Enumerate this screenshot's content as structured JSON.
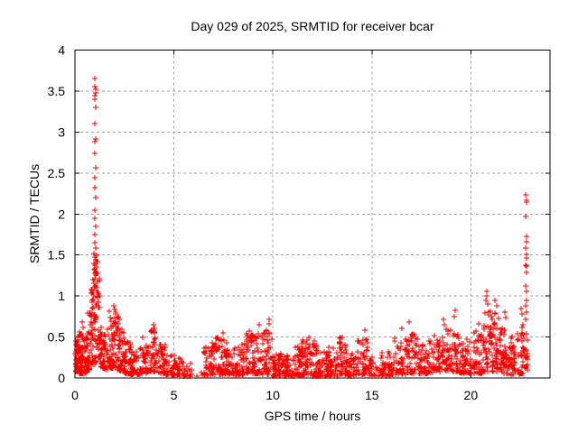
{
  "chart_data": {
    "type": "scatter",
    "title": "Day 029 of 2025, SRMTID for receiver bcar",
    "day": "029",
    "year": "2025",
    "receiver": "bcar",
    "xlabel": "GPS time / hours",
    "ylabel": "SRMTID / TECUs",
    "xlim": [
      0,
      24
    ],
    "ylim": [
      0,
      4
    ],
    "x_ticks": [
      0,
      5,
      10,
      15,
      20
    ],
    "x_tick_labels": [
      "0",
      "5",
      "10",
      "15",
      "20"
    ],
    "y_ticks": [
      0,
      0.5,
      1,
      1.5,
      2,
      2.5,
      3,
      3.5,
      4
    ],
    "y_tick_labels": [
      "0",
      "0.5",
      "1",
      "1.5",
      "2",
      "2.5",
      "3",
      "3.5",
      "4"
    ],
    "grid": true,
    "legend": "none",
    "marker": "plus",
    "marker_color": "#ff0000",
    "grid_color": "#a0a0a0",
    "frame_color": "#000000",
    "envelope_bins": [
      [
        0.0,
        0.1,
        0.08,
        0.5,
        22
      ],
      [
        0.1,
        0.35,
        0.05,
        0.58,
        55
      ],
      [
        0.35,
        0.6,
        0.05,
        0.52,
        50
      ],
      [
        0.6,
        0.8,
        0.1,
        0.8,
        28
      ],
      [
        0.8,
        0.95,
        0.15,
        1.1,
        26
      ],
      [
        0.95,
        1.1,
        0.2,
        1.45,
        26
      ],
      [
        1.1,
        1.25,
        0.25,
        1.3,
        22
      ],
      [
        1.25,
        1.45,
        0.12,
        0.72,
        24
      ],
      [
        1.45,
        1.7,
        0.1,
        0.6,
        30
      ],
      [
        1.7,
        2.0,
        0.12,
        0.85,
        40
      ],
      [
        2.0,
        2.25,
        0.1,
        0.8,
        38
      ],
      [
        2.25,
        2.5,
        0.08,
        0.6,
        34
      ],
      [
        2.5,
        2.8,
        0.05,
        0.45,
        34
      ],
      [
        2.8,
        3.3,
        0.04,
        0.38,
        44
      ],
      [
        3.3,
        3.7,
        0.06,
        0.5,
        40
      ],
      [
        3.7,
        4.15,
        0.08,
        0.62,
        44
      ],
      [
        4.15,
        4.6,
        0.05,
        0.42,
        38
      ],
      [
        4.6,
        5.1,
        0.03,
        0.3,
        32
      ],
      [
        5.1,
        5.55,
        0.02,
        0.25,
        24
      ],
      [
        5.55,
        5.9,
        0.02,
        0.2,
        14
      ],
      [
        5.9,
        6.5,
        0.02,
        0.08,
        3
      ],
      [
        6.5,
        6.9,
        0.03,
        0.42,
        38
      ],
      [
        6.9,
        7.4,
        0.04,
        0.5,
        48
      ],
      [
        7.4,
        7.9,
        0.04,
        0.48,
        48
      ],
      [
        7.9,
        8.5,
        0.03,
        0.42,
        50
      ],
      [
        8.5,
        9.0,
        0.05,
        0.55,
        48
      ],
      [
        9.0,
        9.45,
        0.05,
        0.55,
        44
      ],
      [
        9.45,
        9.95,
        0.04,
        0.6,
        44
      ],
      [
        9.95,
        10.5,
        0.02,
        0.3,
        55
      ],
      [
        10.5,
        11.1,
        0.02,
        0.32,
        55
      ],
      [
        11.1,
        11.5,
        0.03,
        0.42,
        38
      ],
      [
        11.5,
        11.85,
        0.03,
        0.5,
        38
      ],
      [
        11.85,
        12.3,
        0.02,
        0.42,
        44
      ],
      [
        12.3,
        12.8,
        0.02,
        0.32,
        44
      ],
      [
        12.8,
        13.3,
        0.02,
        0.38,
        44
      ],
      [
        13.3,
        13.7,
        0.04,
        0.5,
        38
      ],
      [
        13.7,
        14.25,
        0.02,
        0.3,
        44
      ],
      [
        14.25,
        14.8,
        0.04,
        0.55,
        48
      ],
      [
        14.8,
        15.1,
        0.02,
        0.25,
        18
      ],
      [
        15.1,
        15.4,
        0.02,
        0.18,
        10
      ],
      [
        15.4,
        16.1,
        0.02,
        0.32,
        50
      ],
      [
        16.1,
        16.7,
        0.04,
        0.5,
        48
      ],
      [
        16.7,
        17.3,
        0.05,
        0.55,
        50
      ],
      [
        17.3,
        18.1,
        0.05,
        0.45,
        62
      ],
      [
        18.1,
        18.7,
        0.08,
        0.55,
        52
      ],
      [
        18.7,
        19.4,
        0.08,
        0.6,
        58
      ],
      [
        19.4,
        20.1,
        0.05,
        0.5,
        58
      ],
      [
        20.1,
        20.6,
        0.05,
        0.6,
        48
      ],
      [
        20.6,
        21.05,
        0.08,
        0.85,
        52
      ],
      [
        21.05,
        21.5,
        0.08,
        0.8,
        52
      ],
      [
        21.5,
        21.95,
        0.05,
        0.65,
        48
      ],
      [
        21.95,
        22.45,
        0.03,
        0.55,
        48
      ],
      [
        22.45,
        22.72,
        0.05,
        0.65,
        28
      ],
      [
        22.72,
        22.88,
        0.1,
        0.65,
        16
      ]
    ],
    "peak_points": [
      [
        1.02,
        3.65
      ],
      [
        1.0,
        3.55
      ],
      [
        1.03,
        3.52
      ],
      [
        1.05,
        3.48
      ],
      [
        1.02,
        3.44
      ],
      [
        1.0,
        3.4
      ],
      [
        1.03,
        3.3
      ],
      [
        1.02,
        3.1
      ],
      [
        1.04,
        2.92
      ],
      [
        1.0,
        2.88
      ],
      [
        1.02,
        2.74
      ],
      [
        1.03,
        2.56
      ],
      [
        1.0,
        2.44
      ],
      [
        1.02,
        2.32
      ],
      [
        1.04,
        2.2
      ],
      [
        1.0,
        2.05
      ],
      [
        1.02,
        1.95
      ],
      [
        1.03,
        1.85
      ],
      [
        1.0,
        1.75
      ],
      [
        1.02,
        1.65
      ],
      [
        1.04,
        1.58
      ],
      [
        0.98,
        1.52
      ],
      [
        1.0,
        1.47
      ],
      [
        1.05,
        1.44
      ],
      [
        0.97,
        1.4
      ],
      [
        1.02,
        1.38
      ],
      [
        0.95,
        1.32
      ],
      [
        1.0,
        1.28
      ],
      [
        1.03,
        1.25
      ],
      [
        0.92,
        1.2
      ],
      [
        0.97,
        1.15
      ],
      [
        1.06,
        1.12
      ],
      [
        0.9,
        1.05
      ],
      [
        0.94,
        1.0
      ],
      [
        1.08,
        1.35
      ],
      [
        1.1,
        1.5
      ],
      [
        1.12,
        1.42
      ],
      [
        1.12,
        1.28
      ],
      [
        1.15,
        1.18
      ],
      [
        1.1,
        1.1
      ],
      [
        1.16,
        1.05
      ],
      [
        1.13,
        0.98
      ],
      [
        1.18,
        0.92
      ],
      [
        0.88,
        0.95
      ],
      [
        0.86,
        0.85
      ],
      [
        0.84,
        0.75
      ],
      [
        0.82,
        0.68
      ],
      [
        0.87,
        0.62
      ],
      [
        0.8,
        0.55
      ],
      [
        1.0,
        0.19
      ],
      [
        1.01,
        0.19
      ],
      [
        0.99,
        0.19
      ],
      [
        1.0,
        0.21
      ],
      [
        1.0,
        0.17
      ],
      [
        0.38,
        0.68
      ],
      [
        0.4,
        0.62
      ],
      [
        1.95,
        0.88
      ],
      [
        2.0,
        0.84
      ],
      [
        2.05,
        0.8
      ],
      [
        3.95,
        0.65
      ],
      [
        4.0,
        0.6
      ],
      [
        5.0,
        0.28
      ],
      [
        7.5,
        0.55
      ],
      [
        8.8,
        0.57
      ],
      [
        9.3,
        0.65
      ],
      [
        9.8,
        0.72
      ],
      [
        9.82,
        0.66
      ],
      [
        12.1,
        0.45
      ],
      [
        13.5,
        0.5
      ],
      [
        14.65,
        0.58
      ],
      [
        16.5,
        0.6
      ],
      [
        16.9,
        0.68
      ],
      [
        18.6,
        0.72
      ],
      [
        18.65,
        0.65
      ],
      [
        19.15,
        0.75
      ],
      [
        19.2,
        0.82
      ],
      [
        20.4,
        0.66
      ],
      [
        20.78,
        0.95
      ],
      [
        20.8,
        1.06
      ],
      [
        20.82,
        1.0
      ],
      [
        20.85,
        0.9
      ],
      [
        21.2,
        0.95
      ],
      [
        21.3,
        0.88
      ],
      [
        21.7,
        0.8
      ],
      [
        21.75,
        0.74
      ],
      [
        22.55,
        0.85
      ],
      [
        22.6,
        0.78
      ],
      [
        22.78,
        2.23
      ],
      [
        22.8,
        2.17
      ],
      [
        22.82,
        2.15
      ],
      [
        22.79,
        1.97
      ],
      [
        22.8,
        1.73
      ],
      [
        22.81,
        1.66
      ],
      [
        22.79,
        1.59
      ],
      [
        22.8,
        1.51
      ],
      [
        22.82,
        1.46
      ],
      [
        22.79,
        1.38
      ],
      [
        22.81,
        1.36
      ],
      [
        22.8,
        1.29
      ],
      [
        22.79,
        1.12
      ],
      [
        22.81,
        1.06
      ],
      [
        22.8,
        0.95
      ],
      [
        22.78,
        0.88
      ],
      [
        22.8,
        0.8
      ],
      [
        22.77,
        0.72
      ]
    ]
  }
}
